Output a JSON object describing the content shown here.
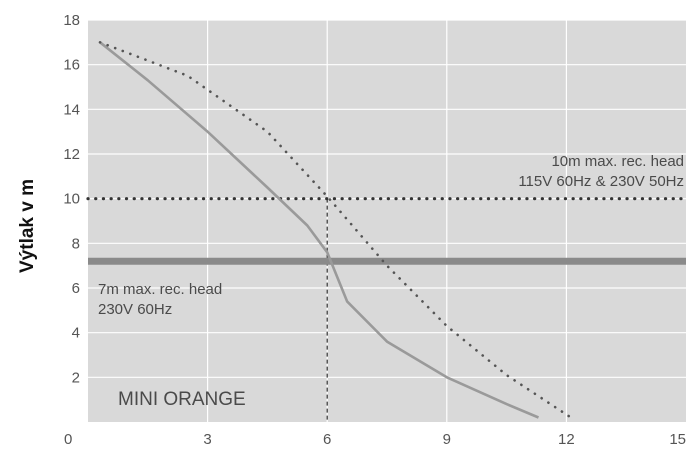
{
  "chart_data": {
    "type": "line",
    "title": "MINI ORANGE",
    "xlabel": "",
    "ylabel": "Výtlak v m",
    "xlim": [
      0,
      15
    ],
    "ylim": [
      0,
      18
    ],
    "x_ticks": [
      "0",
      "3",
      "6",
      "9",
      "12",
      "15"
    ],
    "y_ticks": [
      "2",
      "4",
      "6",
      "8",
      "10",
      "12",
      "14",
      "16",
      "18"
    ],
    "grid": true,
    "background_color": "#d9d9d9",
    "series": [
      {
        "style": "solid",
        "color": "#9a9a9a",
        "x": [
          0.3,
          1.5,
          3.0,
          4.5,
          5.5,
          6.0,
          6.5,
          7.5,
          9.0,
          10.5,
          11.3
        ],
        "y": [
          17.0,
          15.3,
          13.0,
          10.5,
          8.8,
          7.6,
          5.4,
          3.6,
          2.0,
          0.8,
          0.2
        ]
      },
      {
        "style": "dotted",
        "color": "#555555",
        "x": [
          0.3,
          2.5,
          4.5,
          6.0,
          7.5,
          9.0,
          10.5,
          12.2
        ],
        "y": [
          17.0,
          15.5,
          13.0,
          10.1,
          7.0,
          4.3,
          2.1,
          0.1
        ]
      }
    ],
    "reference_lines": [
      {
        "y": 10,
        "style": "dotted",
        "color": "#333333",
        "label_lines": [
          "10m max. rec. head",
          "115V 60Hz & 230V 50Hz"
        ]
      },
      {
        "y": 7.2,
        "style": "solid",
        "color": "#8a8a8a",
        "label_lines": [
          "7m max. rec. head",
          "230V 60Hz"
        ]
      }
    ],
    "guide_x": 6
  }
}
